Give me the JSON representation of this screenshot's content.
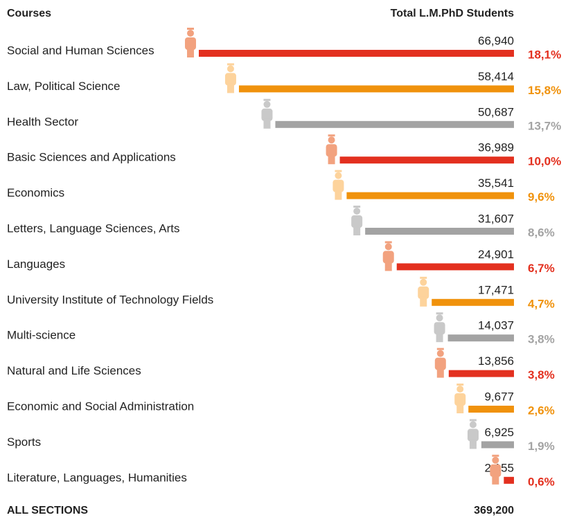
{
  "chart_data": {
    "type": "bar",
    "orientation": "horizontal",
    "header_left": "Courses",
    "header_right": "Total L.M.PhD Students",
    "categories": [
      "Social and Human Sciences",
      "Law, Political Science",
      "Health Sector",
      "Basic Sciences and Applications",
      "Economics",
      "Letters, Language Sciences, Arts",
      "Languages",
      "University Institute of Technology Fields",
      "Multi-science",
      "Natural and Life Sciences",
      "Economic and Social Administration",
      "Sports",
      "Literature, Languages, Humanities"
    ],
    "values": [
      66940,
      58414,
      50687,
      36989,
      35541,
      31607,
      24901,
      17471,
      14037,
      13856,
      9677,
      6925,
      2155
    ],
    "value_labels": [
      "66,940",
      "58,414",
      "50,687",
      "36,989",
      "35,541",
      "31,607",
      "24,901",
      "17,471",
      "14,037",
      "13,856",
      "9,677",
      "6,925",
      "2,155"
    ],
    "percents": [
      18.1,
      15.8,
      13.7,
      10.0,
      9.6,
      8.6,
      6.7,
      4.7,
      3.8,
      3.8,
      2.6,
      1.9,
      0.6
    ],
    "percent_labels": [
      "18,1%",
      "15,8%",
      "13,7%",
      "10,0%",
      "9,6%",
      "8,6%",
      "6,7%",
      "4,7%",
      "3,8%",
      "3,8%",
      "2,6%",
      "1,9%",
      "0,6%"
    ],
    "colors": [
      "#e3301f",
      "#f0920c",
      "#a3a3a3"
    ],
    "icon_colors": [
      "#f2a27f",
      "#fdd39c",
      "#c9c9c9"
    ],
    "total_name": "ALL SECTIONS",
    "total": 369200,
    "total_label": "369,200"
  }
}
